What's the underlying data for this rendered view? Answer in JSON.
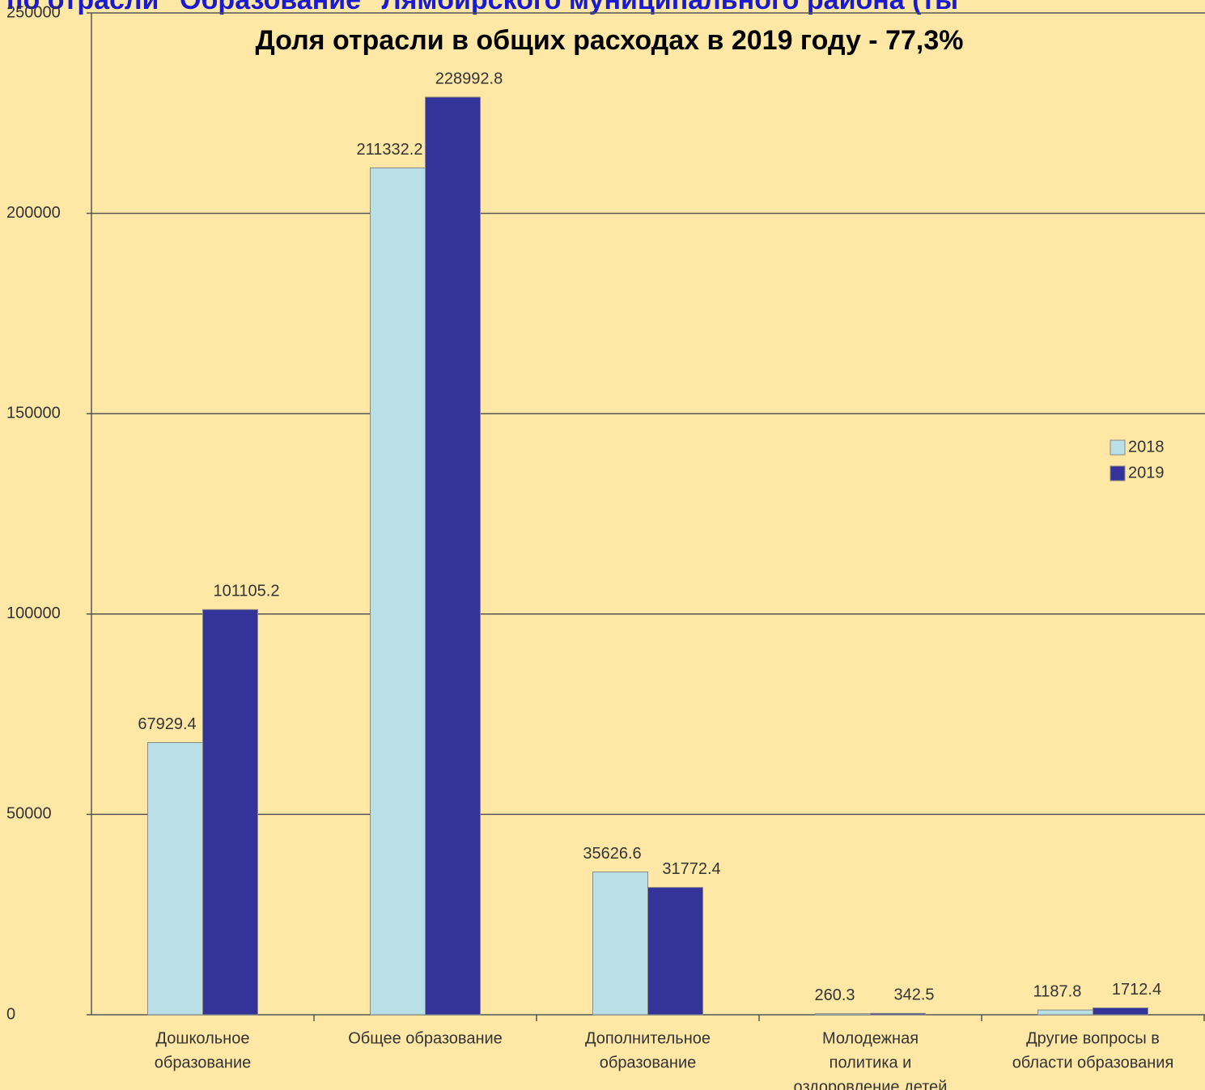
{
  "chart_data": {
    "type": "bar",
    "title": "по отрасли \"Образование\" Лямбирского муниципального района (ты",
    "subtitle": "Доля отрасли в общих расходах в 2019 году - 77,3%",
    "categories": [
      [
        "Дошкольное",
        "образование"
      ],
      [
        "Общее образование"
      ],
      [
        "Дополнительное",
        "образование"
      ],
      [
        "Молодежная",
        "политика и",
        "оздоровление детей"
      ],
      [
        "Другие вопросы в",
        "области образования"
      ]
    ],
    "series": [
      {
        "name": "2018",
        "color": "#b9e0e6",
        "values": [
          67929.4,
          211332.2,
          35626.6,
          260.3,
          1187.8
        ]
      },
      {
        "name": "2019",
        "color": "#33339a",
        "values": [
          101105.2,
          228992.8,
          31772.4,
          342.5,
          1712.4
        ]
      }
    ],
    "ylim": [
      0,
      250000
    ],
    "yticks": [
      0,
      50000,
      100000,
      150000,
      200000,
      250000
    ],
    "grid": true,
    "legend": "right"
  }
}
